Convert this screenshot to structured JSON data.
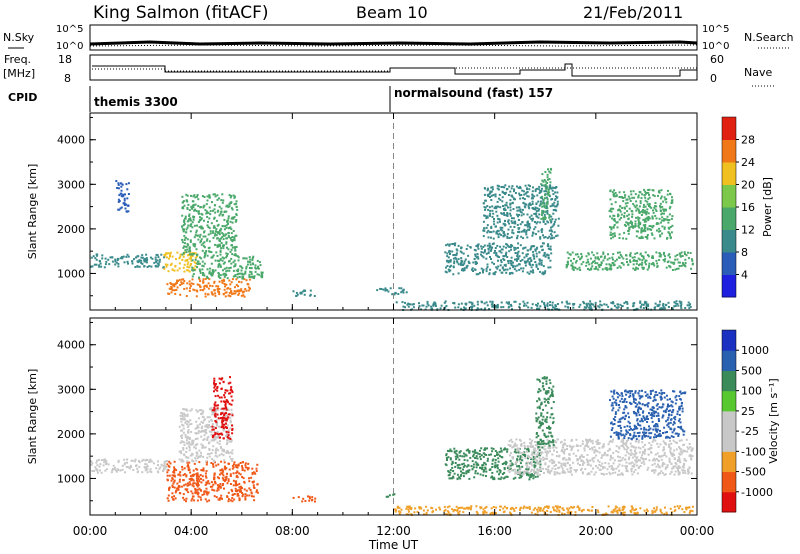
{
  "header": {
    "station": "King Salmon (fitACF)",
    "beam": "Beam 10",
    "date": "21/Feb/2011"
  },
  "top_panels": {
    "nsky_label": "N.Sky",
    "nsky_ticks": [
      "10^5",
      "10^0"
    ],
    "nsearch_label": "N.Search",
    "nsearch_ticks": [
      "10^5",
      "10^0"
    ],
    "freq_label_1": "Freq.",
    "freq_label_2": "[MHz]",
    "freq_ticks": [
      "18",
      "8"
    ],
    "nave_label": "Nave",
    "nave_ticks": [
      "60",
      "0"
    ],
    "cpid_label": "CPID",
    "cpid_modes": [
      {
        "label": "themis 3300",
        "start_hour": 0
      },
      {
        "label": "normalsound (fast) 157",
        "start_hour": 12
      }
    ]
  },
  "colors": {
    "power_scale": [
      "#1f1fe0",
      "#2a5cb8",
      "#3a8a8c",
      "#4aa86a",
      "#7cc84a",
      "#f0c020",
      "#f07818",
      "#e02010"
    ],
    "velocity_scale": [
      "#e01010",
      "#f05818",
      "#f0a028",
      "#c8c8c8",
      "#c8c8c8",
      "#58c830",
      "#3a8a5a",
      "#2a60b0",
      "#1a30c0"
    ],
    "sunrise_line": "#888888"
  },
  "chart_data": [
    {
      "type": "heatmap",
      "name": "power",
      "xlabel": "Time UT",
      "ylabel": "Slant Range [km]",
      "xlim": [
        0,
        24
      ],
      "ylim": [
        180,
        4600
      ],
      "x_ticks": [
        "00:00",
        "04:00",
        "08:00",
        "12:00",
        "16:00",
        "20:00",
        "00:00"
      ],
      "y_ticks": [
        "1000",
        "2000",
        "3000",
        "4000"
      ],
      "colorbar_label": "Power [dB]",
      "colorbar_ticks": [
        "4",
        "8",
        "12",
        "16",
        "20",
        "24",
        "28"
      ],
      "regions": [
        {
          "t0": 0.0,
          "t1": 2.9,
          "r0": 1150,
          "r1": 1450,
          "value": 8
        },
        {
          "t0": 1.0,
          "t1": 1.5,
          "r0": 2400,
          "r1": 3100,
          "value": 6
        },
        {
          "t0": 2.9,
          "t1": 4.2,
          "r0": 1050,
          "r1": 1500,
          "value": 22
        },
        {
          "t0": 3.0,
          "t1": 6.3,
          "r0": 500,
          "r1": 900,
          "value": 24
        },
        {
          "t0": 3.6,
          "t1": 5.8,
          "r0": 1400,
          "r1": 2800,
          "value": 12
        },
        {
          "t0": 4.0,
          "t1": 6.8,
          "r0": 900,
          "r1": 1400,
          "value": 14
        },
        {
          "t0": 8.0,
          "t1": 8.9,
          "r0": 500,
          "r1": 650,
          "value": 10
        },
        {
          "t0": 11.3,
          "t1": 12.5,
          "r0": 550,
          "r1": 700,
          "value": 8
        },
        {
          "t0": 14.0,
          "t1": 18.2,
          "r0": 1000,
          "r1": 1700,
          "value": 10
        },
        {
          "t0": 15.5,
          "t1": 18.5,
          "r0": 1800,
          "r1": 3000,
          "value": 8
        },
        {
          "t0": 17.8,
          "t1": 18.2,
          "r0": 2200,
          "r1": 3400,
          "value": 14
        },
        {
          "t0": 18.8,
          "t1": 23.8,
          "r0": 1100,
          "r1": 1500,
          "value": 14
        },
        {
          "t0": 20.5,
          "t1": 23.0,
          "r0": 1800,
          "r1": 2900,
          "value": 12
        },
        {
          "t0": 12.0,
          "t1": 23.8,
          "r0": 200,
          "r1": 400,
          "value": 8
        }
      ]
    },
    {
      "type": "heatmap",
      "name": "velocity",
      "xlabel": "Time UT",
      "ylabel": "Slant Range [km]",
      "xlim": [
        0,
        24
      ],
      "ylim": [
        180,
        4600
      ],
      "x_ticks": [
        "00:00",
        "04:00",
        "08:00",
        "12:00",
        "16:00",
        "20:00",
        "00:00"
      ],
      "y_ticks": [
        "1000",
        "2000",
        "3000",
        "4000"
      ],
      "colorbar_label": "Velocity [m s⁻¹]",
      "colorbar_ticks": [
        "1000",
        "500",
        "100",
        "25",
        "-25",
        "-100",
        "-500",
        "-1000"
      ],
      "regions": [
        {
          "t0": 0.0,
          "t1": 3.2,
          "r0": 1150,
          "r1": 1450,
          "value": 0
        },
        {
          "t0": 3.0,
          "t1": 6.6,
          "r0": 500,
          "r1": 1400,
          "value": -300
        },
        {
          "t0": 3.5,
          "t1": 5.6,
          "r0": 1400,
          "r1": 2600,
          "value": 0
        },
        {
          "t0": 4.8,
          "t1": 5.6,
          "r0": 1900,
          "r1": 3300,
          "value": -800
        },
        {
          "t0": 8.0,
          "t1": 8.9,
          "r0": 500,
          "r1": 620,
          "value": -200
        },
        {
          "t0": 11.6,
          "t1": 12.0,
          "r0": 600,
          "r1": 700,
          "value": 150
        },
        {
          "t0": 14.0,
          "t1": 17.8,
          "r0": 1000,
          "r1": 1700,
          "value": 150
        },
        {
          "t0": 16.5,
          "t1": 23.8,
          "r0": 1100,
          "r1": 1900,
          "value": 0
        },
        {
          "t0": 17.6,
          "t1": 18.3,
          "r0": 1700,
          "r1": 3300,
          "value": 300
        },
        {
          "t0": 20.5,
          "t1": 23.5,
          "r0": 1900,
          "r1": 3000,
          "value": 700
        },
        {
          "t0": 12.0,
          "t1": 23.8,
          "r0": 200,
          "r1": 400,
          "value": -100
        }
      ]
    }
  ]
}
